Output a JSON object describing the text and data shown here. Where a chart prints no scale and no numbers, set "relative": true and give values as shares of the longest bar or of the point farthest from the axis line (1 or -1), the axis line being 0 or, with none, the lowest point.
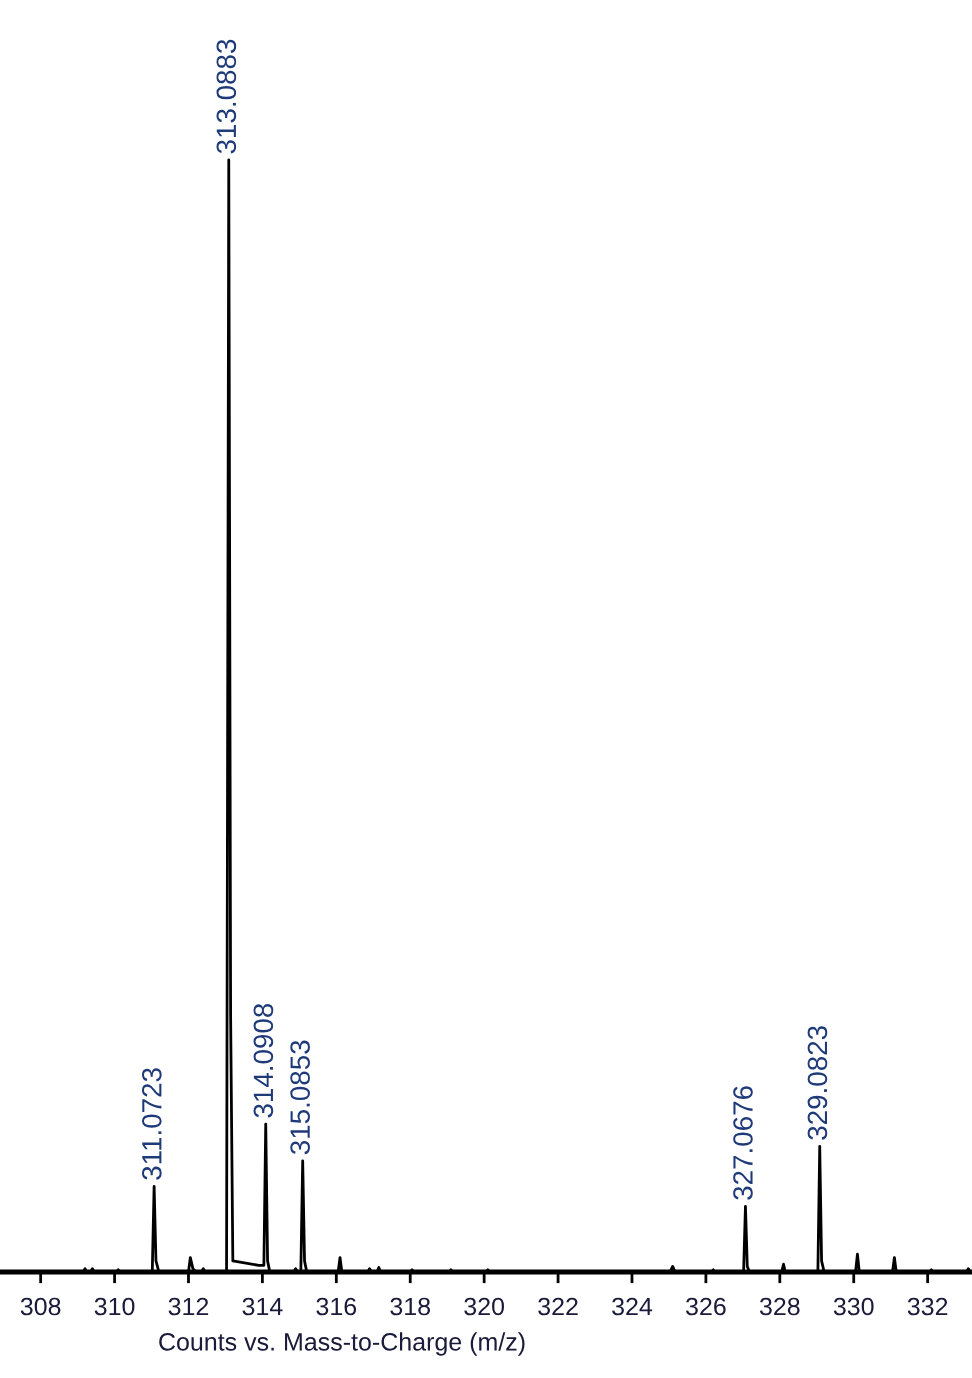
{
  "chart_data": {
    "type": "line",
    "relative": true,
    "xlabel": "Counts vs. Mass-to-Charge (m/z)",
    "xlim": [
      306.9,
      333.2
    ],
    "xticks": [
      308,
      310,
      312,
      314,
      316,
      318,
      320,
      322,
      324,
      326,
      328,
      330,
      332
    ],
    "series": [
      {
        "color": "#000000",
        "x": [
          306.9,
          309.15,
          309.2,
          309.25,
          309.35,
          309.4,
          309.45,
          310.05,
          310.1,
          310.15,
          311.02,
          311.07,
          311.12,
          311.2,
          312.0,
          312.05,
          312.12,
          312.2,
          312.35,
          312.4,
          312.45,
          313.03,
          313.09,
          313.14,
          313.2,
          313.9,
          314.04,
          314.09,
          314.14,
          314.2,
          314.85,
          314.9,
          314.95,
          315.04,
          315.09,
          315.14,
          315.2,
          316.05,
          316.1,
          316.15,
          316.85,
          316.9,
          316.95,
          317.1,
          317.15,
          317.2,
          318.0,
          318.05,
          318.1,
          319.05,
          319.1,
          319.15,
          320.05,
          320.1,
          320.15,
          325.03,
          325.1,
          325.17,
          326.15,
          326.2,
          326.25,
          327.02,
          327.07,
          327.12,
          327.18,
          328.05,
          328.1,
          328.15,
          329.03,
          329.08,
          329.13,
          329.2,
          330.05,
          330.1,
          330.15,
          331.05,
          331.1,
          331.15,
          332.05,
          332.1,
          332.15,
          333.05,
          333.1,
          333.15,
          333.2
        ],
        "values": [
          0,
          0,
          0.003,
          0,
          0,
          0.003,
          0,
          0,
          0.002,
          0,
          0,
          0.077,
          0.01,
          0,
          0,
          0.013,
          0.003,
          0,
          0,
          0.003,
          0,
          0,
          1.0,
          0.23,
          0.01,
          0.006,
          0.006,
          0.133,
          0.01,
          0,
          0,
          0.003,
          0,
          0,
          0.1,
          0.01,
          0,
          0,
          0.013,
          0,
          0,
          0.003,
          0,
          0,
          0.004,
          0,
          0,
          0.002,
          0,
          0,
          0.002,
          0,
          0,
          0.002,
          0,
          0,
          0.005,
          0,
          0,
          0.002,
          0,
          0,
          0.059,
          0.005,
          0,
          0,
          0.007,
          0,
          0,
          0.113,
          0.01,
          0,
          0,
          0.016,
          0,
          0,
          0.013,
          0,
          0,
          0.002,
          0,
          0,
          0.003,
          0,
          0
        ]
      }
    ],
    "annotations": [
      {
        "text": "311.0723",
        "x": 311.0723,
        "y": 0.077
      },
      {
        "text": "313.0883",
        "x": 313.0883,
        "y": 1.0
      },
      {
        "text": "314.0908",
        "x": 314.0908,
        "y": 0.133
      },
      {
        "text": "315.0853",
        "x": 315.0853,
        "y": 0.1
      },
      {
        "text": "327.0676",
        "x": 327.0676,
        "y": 0.059
      },
      {
        "text": "329.0823",
        "x": 329.0823,
        "y": 0.113
      }
    ]
  }
}
